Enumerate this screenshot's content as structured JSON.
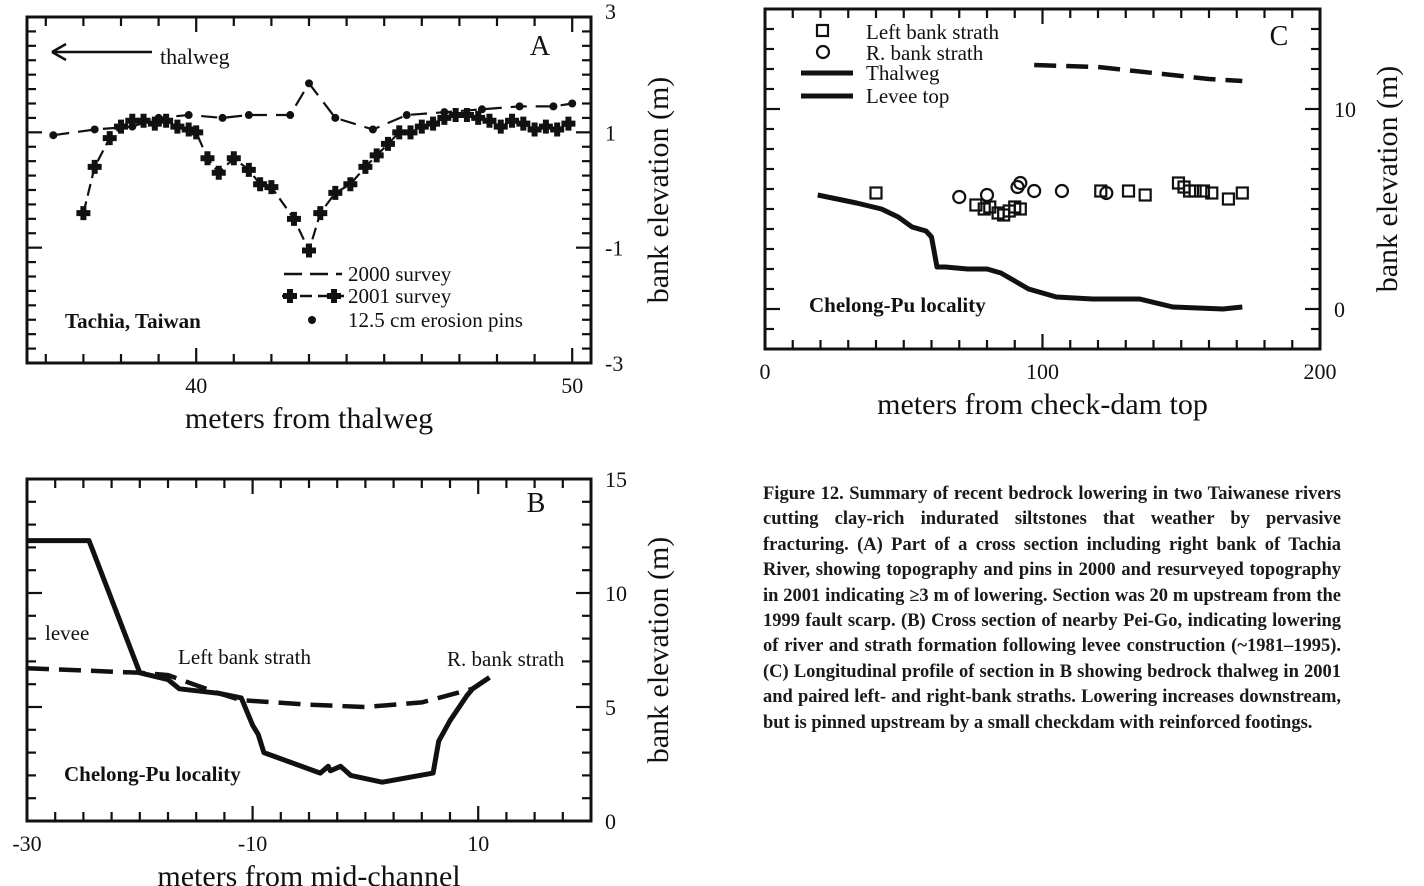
{
  "caption": "Figure 12. Summary of recent bedrock lowering in two Taiwanese rivers cutting clay-rich indurated siltstones that weather by pervasive fracturing. (A) Part of a cross section including right bank of Tachia River, showing topography and pins in 2000 and resurveyed topography in 2001 indicating ≥3 m of lowering. Section was 20 m upstream from the 1999 fault scarp. (B) Cross section of nearby Pei-Go, indicating lowering of river and strath formation following levee construction (~1981–1995). (C) Longitudinal profile of section in B showing bedrock thalweg in 2001 and paired left- and right-bank straths. Lowering increases downstream, but is pinned upstream by a small checkdam with reinforced footings.",
  "chart_data": [
    {
      "panel": "A",
      "type": "line",
      "xlabel": "meters from thalweg",
      "ylabel": "bank elevation (m)",
      "xlim": [
        35.5,
        50.5
      ],
      "ylim": [
        -3,
        3
      ],
      "xticks": [
        40,
        50
      ],
      "yticks": [
        -3,
        -1,
        1,
        3
      ],
      "locality": "Tachia, Taiwan",
      "annotation": "thalweg",
      "legend": [
        "2000 survey",
        "2001 survey",
        "12.5 cm erosion pins"
      ],
      "legend_position": "bottom-right",
      "series": [
        {
          "name": "2000 survey",
          "style": "dashed",
          "x": [
            36.2,
            37.3,
            38.3,
            39.0,
            39.8,
            40.7,
            41.4,
            42.5,
            43.0,
            43.7,
            44.7,
            45.6,
            46.6,
            47.6,
            48.6,
            49.5,
            50.0
          ],
          "y": [
            0.95,
            1.05,
            1.1,
            1.25,
            1.3,
            1.25,
            1.3,
            1.3,
            1.85,
            1.25,
            1.05,
            1.3,
            1.35,
            1.4,
            1.45,
            1.45,
            1.5
          ]
        },
        {
          "name": "2001 survey",
          "style": "dashed-marker",
          "x": [
            37.0,
            37.3,
            37.7,
            38.0,
            38.3,
            38.6,
            38.9,
            39.2,
            39.5,
            39.8,
            40.0,
            40.3,
            40.6,
            41.0,
            41.4,
            41.7,
            42.0,
            42.6,
            43.0,
            43.3,
            43.7,
            44.1,
            44.5,
            44.8,
            45.1,
            45.4,
            45.7,
            46.0,
            46.3,
            46.6,
            46.9,
            47.2,
            47.5,
            47.8,
            48.1,
            48.4,
            48.7,
            49.0,
            49.3,
            49.6,
            49.9
          ],
          "y": [
            -0.4,
            0.4,
            0.9,
            1.1,
            1.2,
            1.2,
            1.15,
            1.2,
            1.1,
            1.05,
            1.0,
            0.55,
            0.3,
            0.55,
            0.35,
            0.1,
            0.05,
            -0.5,
            -1.05,
            -0.4,
            -0.05,
            0.1,
            0.4,
            0.6,
            0.8,
            1.0,
            1.0,
            1.1,
            1.15,
            1.25,
            1.3,
            1.3,
            1.25,
            1.2,
            1.1,
            1.2,
            1.15,
            1.05,
            1.1,
            1.05,
            1.15
          ]
        },
        {
          "name": "12.5 cm erosion pins",
          "style": "points",
          "x": [
            36.2,
            37.3,
            38.3,
            39.0,
            39.8,
            40.7,
            41.4,
            42.5,
            43.0,
            43.7,
            44.7,
            45.6,
            46.6,
            47.6,
            48.6,
            49.5,
            50.0
          ],
          "y": [
            0.95,
            1.05,
            1.1,
            1.25,
            1.3,
            1.25,
            1.3,
            1.3,
            1.85,
            1.25,
            1.05,
            1.3,
            1.35,
            1.4,
            1.45,
            1.45,
            1.5
          ]
        }
      ]
    },
    {
      "panel": "B",
      "type": "line",
      "xlabel": "meters from mid-channel",
      "ylabel": "bank elevation (m)",
      "xlim": [
        -30,
        20
      ],
      "ylim": [
        0,
        15
      ],
      "xticks": [
        -30,
        -10,
        10
      ],
      "yticks": [
        0,
        5,
        10,
        15
      ],
      "locality": "Chelong-Pu locality",
      "annotations": [
        "levee",
        "Left bank strath",
        "R. bank strath"
      ],
      "series": [
        {
          "name": "",
          "style": "solid",
          "x": [
            -30,
            -24.5,
            -20,
            -17.5,
            -16.5,
            -13,
            -11,
            -10,
            -9.5,
            -9,
            -4,
            -3.3,
            -3.1,
            -2.2,
            -1.3,
            1.5,
            6,
            6.5,
            7.5,
            9,
            9.5,
            11
          ],
          "y": [
            12.3,
            12.3,
            6.5,
            6.2,
            5.8,
            5.6,
            5.4,
            4.2,
            3.8,
            3.0,
            2.1,
            2.4,
            2.2,
            2.4,
            2.0,
            1.7,
            2.1,
            3.5,
            4.4,
            5.5,
            5.8,
            6.3
          ]
        },
        {
          "name": "",
          "style": "dashed",
          "x": [
            -30,
            -20,
            -17.5,
            -13,
            -11,
            -5,
            0,
            5,
            9.5,
            11
          ],
          "y": [
            6.7,
            6.5,
            6.4,
            5.6,
            5.3,
            5.1,
            5.0,
            5.2,
            5.8,
            6.3
          ]
        }
      ]
    },
    {
      "panel": "C",
      "type": "scatter",
      "xlabel": "meters from check-dam top",
      "ylabel": "bank elevation (m)",
      "xlim": [
        0,
        200
      ],
      "ylim": [
        -2,
        15
      ],
      "xticks": [
        0,
        100,
        200
      ],
      "yticks": [
        0,
        10
      ],
      "locality": "Chelong-Pu locality",
      "legend": [
        "Left bank strath",
        "R. bank strath",
        "Thalweg",
        "Levee top"
      ],
      "legend_position": "top-left",
      "series": [
        {
          "name": "Left bank strath",
          "style": "square",
          "x": [
            40,
            76,
            79,
            81,
            84,
            86,
            88,
            90,
            92,
            121,
            131,
            137,
            149,
            151,
            153,
            155,
            158,
            161,
            167,
            172
          ],
          "y": [
            5.8,
            5.2,
            5.0,
            5.1,
            4.8,
            4.7,
            4.9,
            5.1,
            5.0,
            5.9,
            5.9,
            5.7,
            6.3,
            6.1,
            5.9,
            5.9,
            5.9,
            5.8,
            5.5,
            5.8
          ]
        },
        {
          "name": "R. bank strath",
          "style": "circle",
          "x": [
            70,
            80,
            91,
            92,
            97,
            107,
            123
          ],
          "y": [
            5.6,
            5.7,
            6.1,
            6.3,
            5.9,
            5.9,
            5.8
          ]
        },
        {
          "name": "Thalweg",
          "style": "solid",
          "x": [
            19,
            33,
            42,
            48,
            53,
            58,
            60,
            62,
            65,
            73,
            80,
            85,
            95,
            105,
            118,
            135,
            147,
            165,
            172
          ],
          "y": [
            5.7,
            5.3,
            5.0,
            4.6,
            4.1,
            3.9,
            3.6,
            2.1,
            2.1,
            2.0,
            2.0,
            1.8,
            1.0,
            0.6,
            0.5,
            0.5,
            0.1,
            0.0,
            0.1
          ]
        },
        {
          "name": "Levee top",
          "style": "dashed",
          "x": [
            97,
            120,
            140,
            160,
            172
          ],
          "y": [
            12.2,
            12.1,
            11.8,
            11.5,
            11.4
          ]
        }
      ]
    }
  ]
}
